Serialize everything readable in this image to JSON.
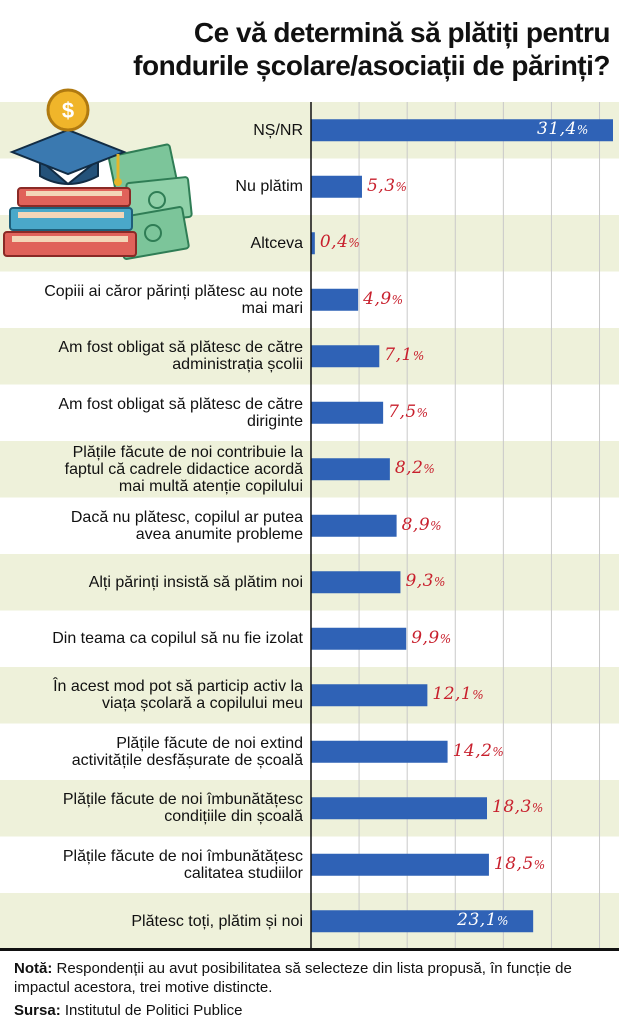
{
  "title": {
    "line1": "Ce vă determină să plătiți pentru",
    "line2": "fondurile școlare/asociații de părinți?"
  },
  "colors": {
    "bar": "#2f62b6",
    "band": "#eef1da",
    "value_text": "#c8202d",
    "grid": "#c9c9c9"
  },
  "chart_data": {
    "type": "bar",
    "orientation": "horizontal",
    "xlim": [
      0,
      31.4
    ],
    "grid": true,
    "categories": [
      "NȘ/NR",
      "Nu plătim",
      "Altceva",
      "Copiii ai căror părinți plătesc au note mai mari",
      "Am fost obligat să plătesc de către administrația școlii",
      "Am fost obligat să plătesc de către diriginte",
      "Plățile făcute de noi contribuie la faptul că cadrele didactice acordă mai multă atenție copilului",
      "Dacă nu plătesc, copilul ar putea avea anumite probleme",
      "Alți părinți insistă să plătim noi",
      "Din teama ca copilul să nu fie izolat",
      "În acest mod pot să particip activ la viața școlară a copilului meu",
      "Plățile făcute de noi extind activitățile desfășurate de școală",
      "Plățile făcute de noi îmbunătățesc condițiile din școală",
      "Plățile făcute de noi îmbunătățesc calitatea studiilor",
      "Plătesc toți, plătim și noi"
    ],
    "label_lines": [
      [
        "NȘ/NR"
      ],
      [
        "Nu plătim"
      ],
      [
        "Altceva"
      ],
      [
        "Copiii ai căror părinți plătesc au note",
        "mai mari"
      ],
      [
        "Am fost obligat să plătesc de către",
        "administrația școlii"
      ],
      [
        "Am fost obligat să plătesc de către",
        "diriginte"
      ],
      [
        "Plățile făcute de noi contribuie la",
        "faptul că cadrele didactice acordă",
        "mai multă atenție copilului"
      ],
      [
        "Dacă nu plătesc, copilul ar putea",
        "avea anumite probleme"
      ],
      [
        "Alți părinți insistă să plătim noi"
      ],
      [
        "Din teama ca copilul să nu fie izolat"
      ],
      [
        "În acest mod pot să particip activ la",
        "viața școlară a copilului meu"
      ],
      [
        "Plățile făcute de noi extind",
        "activitățile desfășurate de școală"
      ],
      [
        "Plățile făcute de noi îmbunătățesc",
        "condițiile din școală"
      ],
      [
        "Plățile făcute de noi îmbunătățesc",
        "calitatea studiilor"
      ],
      [
        "Plătesc toți, plătim și noi"
      ]
    ],
    "values": [
      31.4,
      5.3,
      0.4,
      4.9,
      7.1,
      7.5,
      8.2,
      8.9,
      9.3,
      9.9,
      12.1,
      14.2,
      18.3,
      18.5,
      23.1
    ],
    "value_labels": [
      "31,4",
      "5,3",
      "0,4",
      "4,9",
      "7,1",
      "7,5",
      "8,2",
      "8,9",
      "9,3",
      "9,9",
      "12,1",
      "14,2",
      "18,3",
      "18,5",
      "23,1"
    ],
    "value_suffix": "%"
  },
  "footer": {
    "note_label": "Notă:",
    "note_text": "Respondenții au avut posibilitatea să selecteze din lista propusă, în funcție de impactul acestora, trei motive distincte.",
    "source_label": "Sursa:",
    "source_text": "Institutul de Politici Publice"
  }
}
